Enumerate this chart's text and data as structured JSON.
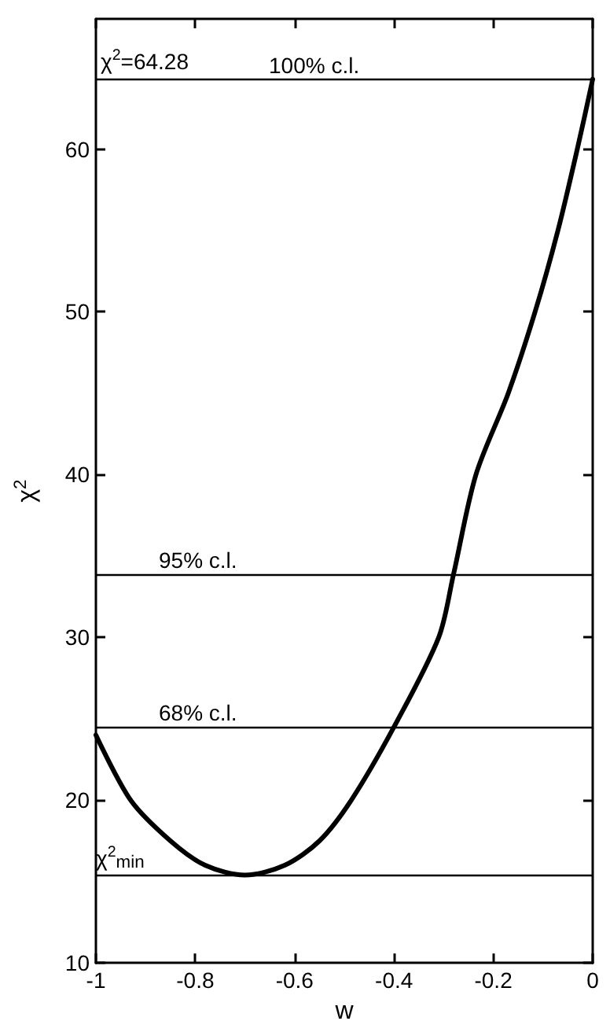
{
  "chart_data": {
    "type": "line",
    "xlabel": "w",
    "ylabel": "χ$^{2}$",
    "x": [
      -1,
      -0.93,
      -0.85,
      -0.78,
      -0.7,
      -0.62,
      -0.55,
      -0.486,
      -0.4,
      -0.31,
      -0.28,
      -0.235,
      -0.17,
      -0.116,
      -0.07,
      -0.031,
      0
    ],
    "series": [
      {
        "color": "#000000",
        "values": [
          24,
          20,
          17.5,
          16,
          15.4,
          16,
          17.5,
          20,
          24.5,
          30,
          33.9,
          40,
          45,
          50,
          55,
          60,
          64.3
        ]
      }
    ],
    "xlim": [
      -1,
      0
    ],
    "xticks": [
      -1,
      -0.8,
      -0.6,
      -0.4,
      -0.2,
      0
    ],
    "ylim": [
      10,
      68
    ],
    "yticks": [
      10,
      20,
      30,
      40,
      50,
      60
    ],
    "ref_lines": [
      {
        "axis": "y",
        "value": 64.28,
        "label": "100% c.l."
      },
      {
        "axis": "y",
        "value": 33.9,
        "label": "95% c.l."
      },
      {
        "axis": "y",
        "value": 24.5,
        "label": "68% c.l."
      },
      {
        "axis": "y",
        "value": 15.4,
        "label": "χ$^{2}$$_{min}$"
      }
    ],
    "annotations": [
      {
        "text": "χ$^{2}$=64.28",
        "x": -1,
        "y": 64.28
      }
    ],
    "grid": false,
    "marker": "none",
    "line_style": "solid"
  }
}
